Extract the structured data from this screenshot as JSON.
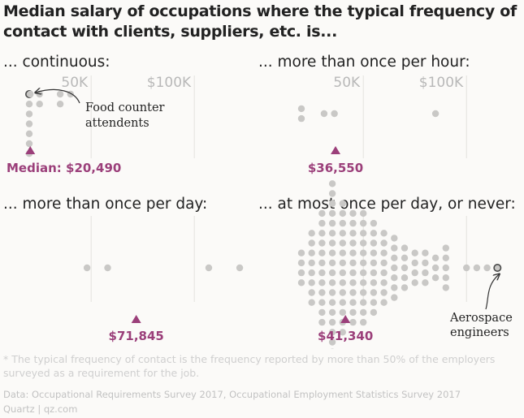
{
  "title": "Median salary of occupations where the typical frequency of contact with clients, suppliers, etc. is...",
  "footnote": "* The typical frequency of contact is the frequency reported by more than 50% of the employers surveyed as a requirement for the job.",
  "source": "Data: Occupational Requirements Survey 2017, Occupational Employment Statistics Survey 2017",
  "credit": "Quartz | qz.com",
  "colors": {
    "dot": "#c9c8c6",
    "median": "#9b3f7a",
    "grid": "#e4e2df",
    "text": "#222222"
  },
  "chart_data": [
    {
      "type": "scatter",
      "subtype": "beeswarm",
      "title": "... continuous:",
      "x_unit": "median annual salary (USD)",
      "xlim": [
        20000,
        120000
      ],
      "x_ticks": [
        {
          "value": 50000,
          "label": "50K"
        },
        {
          "value": 100000,
          "label": "$100K"
        }
      ],
      "median": {
        "value": 20490,
        "label": "Median: $20,490"
      },
      "points": [
        20000,
        20000,
        20000,
        20000,
        20000,
        20000,
        20000,
        20490,
        25000,
        25000,
        35000,
        35000,
        40000
      ],
      "annotation": {
        "text": [
          "Food counter",
          "attendents"
        ],
        "value": 20000
      }
    },
    {
      "type": "scatter",
      "subtype": "beeswarm",
      "title": "... more than once per hour:",
      "x_unit": "median annual salary (USD)",
      "xlim": [
        20000,
        120000
      ],
      "x_ticks": [
        {
          "value": 50000,
          "label": "50K"
        },
        {
          "value": 100000,
          "label": "$100K"
        }
      ],
      "median": {
        "value": 36550,
        "label": "$36,550"
      },
      "points": [
        20000,
        20000,
        31000,
        36000,
        85000
      ]
    },
    {
      "type": "scatter",
      "subtype": "beeswarm",
      "title": "... more than once per day:",
      "x_unit": "median annual salary (USD)",
      "xlim": [
        20000,
        120000
      ],
      "x_ticks": [
        {
          "value": 50000,
          "label": ""
        },
        {
          "value": 100000,
          "label": ""
        }
      ],
      "median": {
        "value": 71845,
        "label": "$71,845"
      },
      "points": [
        48000,
        58000,
        107000,
        122000
      ]
    },
    {
      "type": "scatter",
      "subtype": "beeswarm",
      "title": "... at most once per day, or never:",
      "x_unit": "median annual salary (USD)",
      "xlim": [
        20000,
        120000
      ],
      "x_ticks": [
        {
          "value": 50000,
          "label": ""
        },
        {
          "value": 100000,
          "label": ""
        }
      ],
      "median": {
        "value": 41340,
        "label": "$41,340"
      },
      "points": [
        20000,
        20000,
        20000,
        20000,
        25000,
        25000,
        25000,
        25000,
        25000,
        25000,
        25000,
        25000,
        30000,
        30000,
        30000,
        30000,
        30000,
        30000,
        30000,
        30000,
        30000,
        30000,
        30000,
        30000,
        35000,
        35000,
        35000,
        35000,
        35000,
        35000,
        35000,
        35000,
        35000,
        35000,
        35000,
        35000,
        35000,
        35000,
        35000,
        35000,
        35000,
        35000,
        40000,
        40000,
        40000,
        40000,
        40000,
        40000,
        40000,
        40000,
        40000,
        40000,
        40000,
        40000,
        40000,
        40000,
        45000,
        45000,
        45000,
        45000,
        45000,
        45000,
        45000,
        45000,
        45000,
        45000,
        45000,
        45000,
        50000,
        50000,
        50000,
        50000,
        50000,
        50000,
        50000,
        50000,
        50000,
        50000,
        50000,
        50000,
        55000,
        55000,
        55000,
        55000,
        55000,
        55000,
        55000,
        55000,
        55000,
        55000,
        60000,
        60000,
        60000,
        60000,
        60000,
        60000,
        60000,
        60000,
        65000,
        65000,
        65000,
        65000,
        65000,
        65000,
        65000,
        70000,
        70000,
        70000,
        70000,
        70000,
        75000,
        75000,
        75000,
        75000,
        80000,
        80000,
        80000,
        80000,
        85000,
        85000,
        85000,
        90000,
        90000,
        90000,
        90000,
        90000,
        100000,
        105000,
        110000,
        115000
      ],
      "annotation": {
        "text": [
          "Aerospace",
          "engineers"
        ],
        "value": 115000
      }
    }
  ]
}
